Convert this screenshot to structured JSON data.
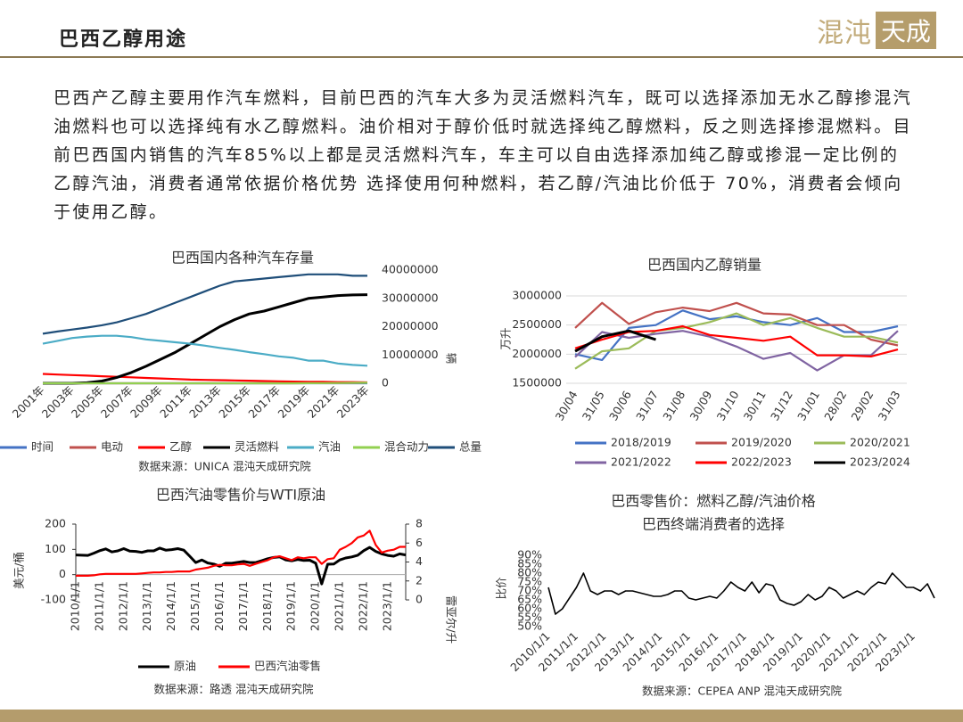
{
  "header": {
    "title": "巴西乙醇用途",
    "logo": {
      "left": "混沌",
      "right": "天成"
    }
  },
  "paragraph": "巴西产乙醇主要用作汽车燃料，目前巴西的汽车大多为灵活燃料汽车，既可以选择添加无水乙醇掺混汽油燃料也可以选择纯有水乙醇燃料。油价相对于醇价低时就选择纯乙醇燃料，反之则选择掺混燃料。目前巴西国内销售的汽车85%以上都是灵活燃料汽车，车主可以自由选择添加纯乙醇或掺混一定比例的乙醇汽油，消费者通常依据价格优势 选择使用何种燃料，若乙醇/汽油比价低于 70%，消费者会倾向于使用乙醇。",
  "chart_data": [
    {
      "type": "line",
      "title": "巴西国内各种汽车存量",
      "ylabel": "辆",
      "source": "数据来源：UNICA 混沌天成研究院",
      "categories": [
        "2001年",
        null,
        "2003年",
        null,
        "2005年",
        null,
        "2007年",
        null,
        "2009年",
        null,
        "2011年",
        null,
        "2013年",
        null,
        "2015年",
        null,
        "2017年",
        null,
        "2019年",
        null,
        "2021年",
        null,
        "2023年"
      ],
      "ylim": [
        0,
        40000000
      ],
      "yticks": [
        0,
        10000000,
        20000000,
        30000000,
        40000000
      ],
      "grid": false,
      "series": [
        {
          "name": "时间",
          "color": "#4472c4",
          "values": [
            2001,
            2002,
            2003,
            2004,
            2005,
            2006,
            2007,
            2008,
            2009,
            2010,
            2011,
            2012,
            2013,
            2014,
            2015,
            2016,
            2017,
            2018,
            2019,
            2020,
            2021,
            2022,
            2023
          ]
        },
        {
          "name": "电动",
          "color": "#c0504d",
          "values": [
            0,
            0,
            0,
            0,
            0,
            0,
            0,
            0,
            0,
            0,
            0,
            0,
            0,
            0,
            0,
            0,
            0,
            0,
            20000,
            40000,
            70000,
            120000,
            180000
          ]
        },
        {
          "name": "乙醇",
          "color": "#ff0000",
          "values": [
            3300000,
            3100000,
            2900000,
            2700000,
            2500000,
            2300000,
            2100000,
            1900000,
            1700000,
            1500000,
            1300000,
            1200000,
            1100000,
            1000000,
            900000,
            800000,
            700000,
            600000,
            500000,
            500000,
            400000,
            400000,
            300000
          ]
        },
        {
          "name": "灵活燃料",
          "color": "#000000",
          "values": [
            0,
            0,
            0,
            200000,
            800000,
            2000000,
            3800000,
            6000000,
            8500000,
            11000000,
            14000000,
            17000000,
            20000000,
            22500000,
            24500000,
            25500000,
            27000000,
            28500000,
            30000000,
            30500000,
            31000000,
            31200000,
            31300000
          ]
        },
        {
          "name": "汽油",
          "color": "#4bacc6",
          "values": [
            14000000,
            15000000,
            16000000,
            16500000,
            16800000,
            16800000,
            16300000,
            15500000,
            15000000,
            14500000,
            14000000,
            13300000,
            12500000,
            11800000,
            11000000,
            10300000,
            9500000,
            9000000,
            8000000,
            8000000,
            7000000,
            6500000,
            6200000
          ]
        },
        {
          "name": "混合动力",
          "color": "#92d050",
          "values": [
            0,
            0,
            0,
            0,
            0,
            0,
            0,
            0,
            0,
            0,
            0,
            0,
            0,
            0,
            0,
            0,
            0,
            10000,
            30000,
            60000,
            100000,
            150000,
            200000
          ]
        },
        {
          "name": "总量",
          "color": "#1f4e79",
          "values": [
            17500000,
            18300000,
            19000000,
            19700000,
            20500000,
            21500000,
            23000000,
            24500000,
            26500000,
            28500000,
            30500000,
            32500000,
            34500000,
            36000000,
            36500000,
            37000000,
            37500000,
            38000000,
            38500000,
            38500000,
            38500000,
            38000000,
            38000000
          ]
        }
      ]
    },
    {
      "type": "line",
      "title": "巴西国内乙醇销量",
      "ylabel": "万升",
      "categories": [
        "30/04",
        "31/05",
        "30/06",
        "31/07",
        "31/08",
        "30/09",
        "31/10",
        "30/11",
        "31/12",
        "31/01",
        "28/02",
        "29/02",
        "31/03"
      ],
      "ylim": [
        1500000,
        3000000
      ],
      "yticks": [
        1500000,
        2000000,
        2500000,
        3000000
      ],
      "grid": true,
      "series": [
        {
          "name": "2018/2019",
          "color": "#4472c4",
          "values": [
            2000000,
            1900000,
            2450000,
            2500000,
            2750000,
            2600000,
            2650000,
            2550000,
            2500000,
            2620000,
            2380000,
            2380000,
            2480000
          ]
        },
        {
          "name": "2019/2020",
          "color": "#c0504d",
          "values": [
            2450000,
            2880000,
            2520000,
            2720000,
            2800000,
            2740000,
            2880000,
            2700000,
            2680000,
            2500000,
            2500000,
            2250000,
            2150000
          ]
        },
        {
          "name": "2020/2021",
          "color": "#9bbb59",
          "values": [
            1750000,
            2050000,
            2100000,
            2400000,
            2450000,
            2550000,
            2700000,
            2500000,
            2620000,
            2450000,
            2300000,
            2300000,
            2200000
          ]
        },
        {
          "name": "2021/2022",
          "color": "#8064a2",
          "values": [
            1950000,
            2380000,
            2280000,
            2350000,
            2400000,
            2300000,
            2130000,
            1920000,
            2020000,
            1720000,
            1980000,
            1980000,
            2400000
          ]
        },
        {
          "name": "2022/2023",
          "color": "#ff0000",
          "values": [
            2100000,
            2250000,
            2380000,
            2400000,
            2480000,
            2330000,
            2280000,
            2230000,
            2300000,
            1980000,
            1980000,
            1960000,
            2080000
          ]
        },
        {
          "name": "2023/2024",
          "color": "#000000",
          "values": [
            2050000,
            2300000,
            2400000,
            2250000,
            null,
            null,
            null,
            null,
            null,
            null,
            null,
            null,
            null
          ]
        }
      ]
    },
    {
      "type": "line",
      "title": "巴西汽油零售价与WTI原油",
      "ylabel": "美元/桶",
      "y2label": "雷亚尔/升",
      "source": "数据来源：路透 混沌天成研究院",
      "categories": [
        "2010/1/1",
        null,
        null,
        null,
        "2011/1/1",
        null,
        null,
        null,
        "2012/1/1",
        null,
        null,
        null,
        "2013/1/1",
        null,
        null,
        null,
        "2014/1/1",
        null,
        null,
        null,
        "2015/1/1",
        null,
        null,
        null,
        "2016/1/1",
        null,
        null,
        null,
        "2017/1/1",
        null,
        null,
        null,
        "2018/1/1",
        null,
        null,
        null,
        "2019/1/1",
        null,
        null,
        null,
        "2020/1/1",
        null,
        null,
        null,
        "2021/1/1",
        null,
        null,
        null,
        "2022/1/1",
        null,
        null,
        null,
        "2023/1/1",
        null,
        null,
        null
      ],
      "ylim": [
        -100,
        200
      ],
      "yticks": [
        -100,
        0,
        100,
        200
      ],
      "y2lim": [
        0,
        8
      ],
      "y2ticks": [
        0,
        2,
        4,
        6,
        8
      ],
      "grid": false,
      "series": [
        {
          "name": "原油",
          "color": "#000000",
          "values": [
            78,
            77,
            76,
            85,
            95,
            102,
            90,
            94,
            103,
            93,
            92,
            88,
            94,
            94,
            105,
            97,
            99,
            103,
            97,
            73,
            48,
            58,
            46,
            42,
            33,
            45,
            45,
            49,
            52,
            48,
            48,
            55,
            63,
            68,
            70,
            58,
            55,
            60,
            56,
            57,
            45,
            -37,
            41,
            42,
            58,
            66,
            70,
            77,
            95,
            108,
            92,
            82,
            76,
            73,
            82,
            78
          ]
        },
        {
          "name": "巴西汽油零售",
          "color": "#ff0000",
          "axis": "y2",
          "values": [
            2.55,
            2.55,
            2.55,
            2.6,
            2.7,
            2.75,
            2.75,
            2.75,
            2.75,
            2.75,
            2.75,
            2.8,
            2.85,
            2.9,
            2.9,
            2.95,
            2.95,
            3.0,
            3.0,
            3.0,
            3.2,
            3.3,
            3.4,
            3.6,
            3.7,
            3.65,
            3.65,
            3.75,
            3.8,
            3.6,
            3.8,
            4.0,
            4.2,
            4.5,
            4.6,
            4.4,
            4.2,
            4.5,
            4.4,
            4.5,
            4.5,
            3.8,
            4.3,
            4.4,
            5.3,
            5.6,
            6.0,
            6.6,
            6.8,
            7.3,
            5.8,
            5.0,
            5.2,
            5.3,
            5.6,
            5.6
          ]
        }
      ]
    },
    {
      "type": "line",
      "title": "巴西零售价：燃料乙醇/汽油价格",
      "subtitle": "巴西终端消费者的选择",
      "ylabel": "比价",
      "source": "数据来源：CEPEA ANP 混沌天成研究院",
      "categories": [
        "2010/1/1",
        null,
        null,
        null,
        "2011/1/1",
        null,
        null,
        null,
        "2012/1/1",
        null,
        null,
        null,
        "2013/1/1",
        null,
        null,
        null,
        "2014/1/1",
        null,
        null,
        null,
        "2015/1/1",
        null,
        null,
        null,
        "2016/1/1",
        null,
        null,
        null,
        "2017/1/1",
        null,
        null,
        null,
        "2018/1/1",
        null,
        null,
        null,
        "2019/1/1",
        null,
        null,
        null,
        "2020/1/1",
        null,
        null,
        null,
        "2021/1/1",
        null,
        null,
        null,
        "2022/1/1",
        null,
        null,
        null,
        "2023/1/1",
        null,
        null,
        null
      ],
      "ylim": [
        50,
        90
      ],
      "yticks": [
        {
          "value": 50,
          "label": "50%"
        },
        {
          "value": 55,
          "label": "55%"
        },
        {
          "value": 60,
          "label": "60%"
        },
        {
          "value": 65,
          "label": "65%"
        },
        {
          "value": 70,
          "label": "70%"
        },
        {
          "value": 75,
          "label": "75%"
        },
        {
          "value": 80,
          "label": "80%"
        },
        {
          "value": 85,
          "label": "85%"
        },
        {
          "value": 90,
          "label": "90%"
        }
      ],
      "grid": false,
      "series": [
        {
          "color": "#000000",
          "values": [
            72,
            57,
            60,
            66,
            72,
            80,
            70,
            68,
            70,
            70,
            68,
            70,
            70,
            69,
            68,
            67,
            67,
            68,
            70,
            70,
            66,
            65,
            66,
            67,
            66,
            70,
            75,
            72,
            70,
            75,
            69,
            74,
            73,
            65,
            63,
            62,
            64,
            68,
            65,
            67,
            72,
            70,
            66,
            68,
            70,
            68,
            72,
            75,
            74,
            80,
            76,
            72,
            72,
            70,
            74,
            66
          ]
        }
      ]
    }
  ]
}
